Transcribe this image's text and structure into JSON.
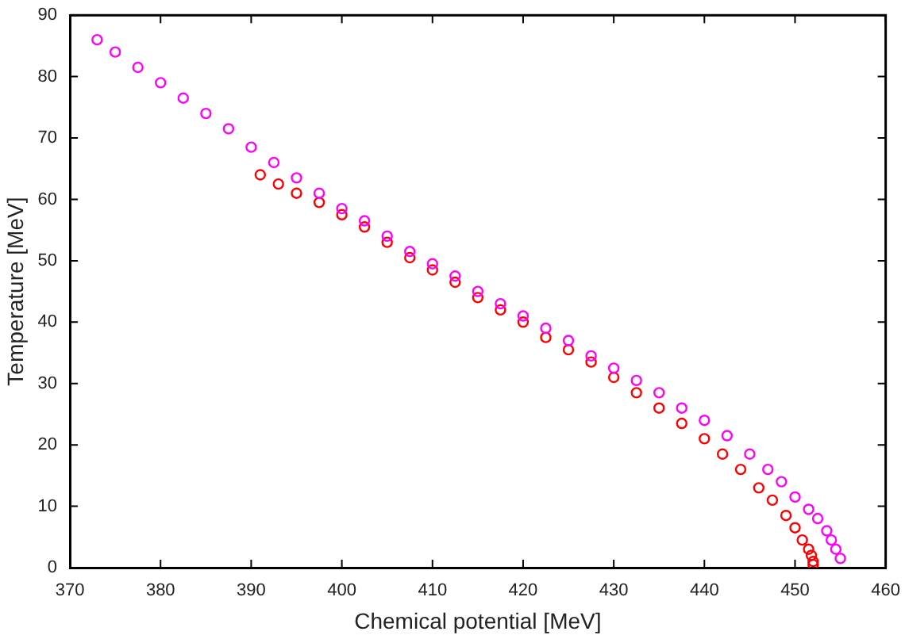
{
  "chart_data": {
    "type": "scatter",
    "xlabel": "Chemical potential [MeV]",
    "ylabel": "Temperature [MeV]",
    "xlim": [
      370,
      460
    ],
    "ylim": [
      0,
      90
    ],
    "xticks": [
      370,
      380,
      390,
      400,
      410,
      420,
      430,
      440,
      450,
      460
    ],
    "yticks": [
      0,
      10,
      20,
      30,
      40,
      50,
      60,
      70,
      80,
      90
    ],
    "grid": false,
    "legend": false,
    "marker": "circle",
    "series": [
      {
        "color": "#ff00ff",
        "x": [
          373,
          375,
          377.5,
          380,
          382.5,
          385,
          387.5,
          390,
          392.5,
          395,
          397.5,
          400,
          402.5,
          405,
          407.5,
          410,
          412.5,
          415,
          417.5,
          420,
          422.5,
          425,
          427.5,
          430,
          432.5,
          435,
          437.5,
          440,
          442.5,
          445,
          447,
          448.5,
          450,
          451.5,
          452.5,
          453.5,
          454,
          454.5,
          455
        ],
        "values": [
          86,
          84,
          81.5,
          79,
          76.5,
          74,
          71.5,
          68.5,
          66,
          63.5,
          61,
          58.5,
          56.5,
          54,
          51.5,
          49.5,
          47.5,
          45,
          43,
          41,
          39,
          37,
          34.5,
          32.5,
          30.5,
          28.5,
          26,
          24,
          21.5,
          18.5,
          16,
          14,
          11.5,
          9.5,
          8,
          6,
          4.5,
          3,
          1.5
        ]
      },
      {
        "color": "#ff0000",
        "x": [
          391,
          393,
          395,
          397.5,
          400,
          402.5,
          405,
          407.5,
          410,
          412.5,
          415,
          417.5,
          420,
          422.5,
          425,
          427.5,
          430,
          432.5,
          435,
          437.5,
          440,
          442,
          444,
          446,
          447.5,
          449,
          450,
          450.8,
          451.5,
          451.8,
          452,
          452
        ],
        "values": [
          64,
          62.5,
          61,
          59.5,
          57.5,
          55.5,
          53,
          50.5,
          48.5,
          46.5,
          44,
          42,
          40,
          37.5,
          35.5,
          33.5,
          31,
          28.5,
          26,
          23.5,
          21,
          18.5,
          16,
          13,
          11,
          8.5,
          6.5,
          4.5,
          3,
          2,
          1,
          0.5
        ]
      }
    ]
  }
}
